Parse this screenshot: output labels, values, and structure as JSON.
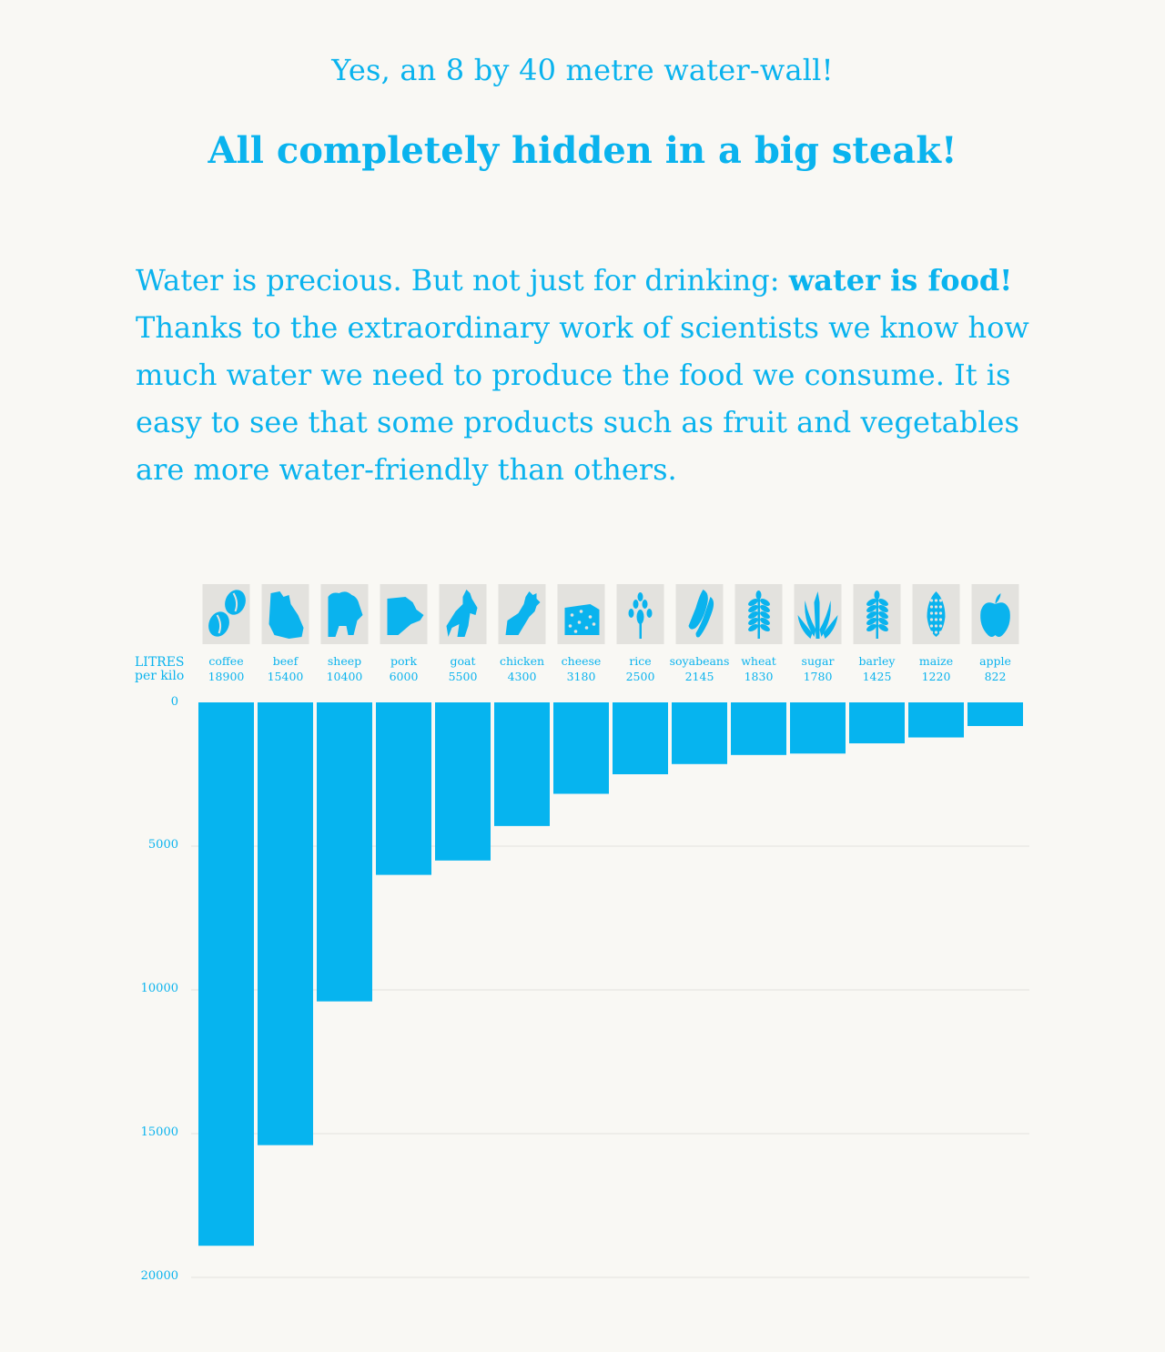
{
  "header": {
    "subtitle": "Yes, an 8 by 40 metre water-wall!",
    "headline": "All completely hidden in a big steak!"
  },
  "intro": {
    "lead": "Water is precious. But not just for drinking: ",
    "emphasis": "water is food!",
    "body": "Thanks to the extraordinary work of scientists we know how much water we need to produce the food we consume. It is easy to see that some products such as fruit and vegetables are more water-friendly than others."
  },
  "colors": {
    "accent": "#0ab3ee",
    "bar": "#06b4ef",
    "icon_tile": "#e3e2de",
    "background": "#f9f8f4"
  },
  "chart_data": {
    "type": "bar",
    "orientation": "vertical-downward",
    "ylabel_line1": "LITRES",
    "ylabel_line2": "per kilo",
    "ylim": [
      0,
      20000
    ],
    "yticks": [
      0,
      5000,
      10000,
      15000,
      20000
    ],
    "grid": true,
    "categories": [
      "coffee",
      "beef",
      "sheep",
      "pork",
      "goat",
      "chicken",
      "cheese",
      "rice",
      "soyabeans",
      "wheat",
      "sugar",
      "barley",
      "maize",
      "apple"
    ],
    "values": [
      18900,
      15400,
      10400,
      6000,
      5500,
      4300,
      3180,
      2500,
      2145,
      1830,
      1780,
      1425,
      1220,
      822
    ],
    "value_labels": [
      "18900",
      "15400",
      "10400",
      "6000",
      "5500",
      "4300",
      "3180",
      "2500",
      "2145",
      "1830",
      "1780",
      "1425",
      "1220",
      "822"
    ],
    "icons": [
      "coffee-beans-icon",
      "beef-icon",
      "sheep-icon",
      "pork-icon",
      "goat-icon",
      "chicken-icon",
      "cheese-icon",
      "rice-icon",
      "soyabeans-icon",
      "wheat-icon",
      "sugar-cane-icon",
      "barley-icon",
      "maize-icon",
      "apple-icon"
    ]
  }
}
